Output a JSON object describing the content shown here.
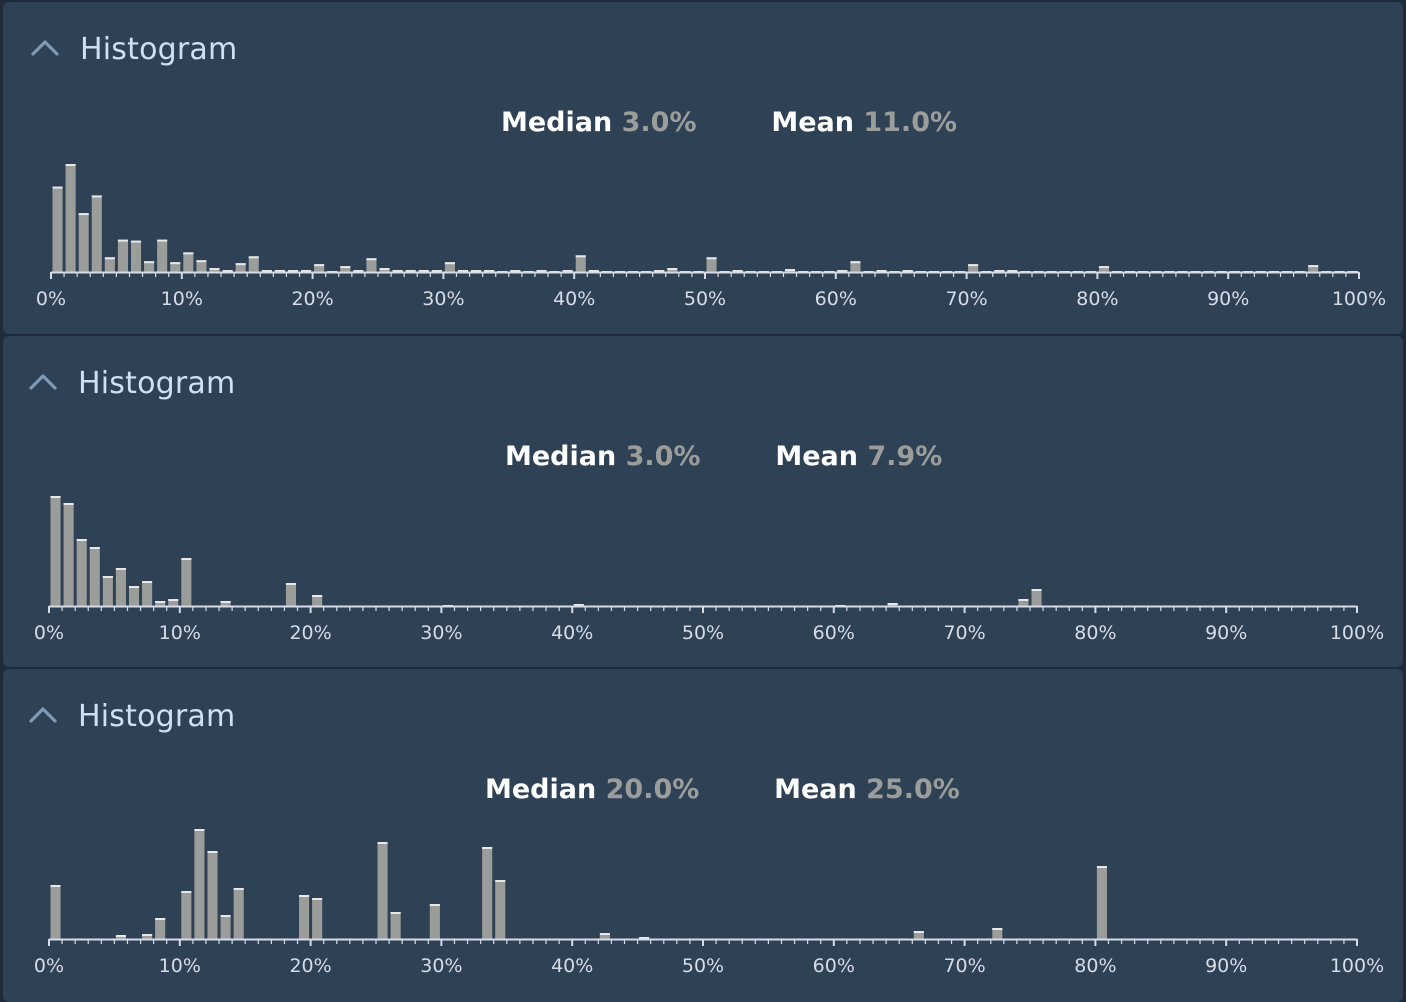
{
  "colors": {
    "background": "#2e4155",
    "bar": "#9b9d9b",
    "bar_top": "#e8e8e8",
    "axis": "#d6dce6",
    "title": "#cfe0f5",
    "stat_value": "#9b9d9b"
  },
  "panels": [
    {
      "title": "Histogram",
      "collapse_icon": "chevron-up-icon",
      "median_label": "Median",
      "median_value": "3.0%",
      "mean_label": "Mean",
      "mean_value": "11.0%"
    },
    {
      "title": "Histogram",
      "collapse_icon": "chevron-up-icon",
      "median_label": "Median",
      "median_value": "3.0%",
      "mean_label": "Mean",
      "mean_value": "7.9%"
    },
    {
      "title": "Histogram",
      "collapse_icon": "chevron-up-icon",
      "median_label": "Median",
      "median_value": "20.0%",
      "mean_label": "Mean",
      "mean_value": "25.0%"
    }
  ],
  "chart_data": [
    {
      "type": "bar",
      "xlim": [
        0,
        100
      ],
      "ylim": [
        0,
        110
      ],
      "bin_width": 1,
      "xticks": [
        "0%",
        "10%",
        "20%",
        "30%",
        "40%",
        "50%",
        "60%",
        "70%",
        "80%",
        "90%",
        "100%"
      ],
      "bins": [
        0,
        1,
        2,
        3,
        4,
        5,
        6,
        7,
        8,
        9,
        10,
        11,
        12,
        13,
        14,
        15,
        16,
        17,
        18,
        19,
        20,
        21,
        22,
        23,
        24,
        25,
        26,
        27,
        28,
        29,
        30,
        31,
        32,
        33,
        34,
        35,
        36,
        37,
        38,
        39,
        40,
        41,
        42,
        43,
        44,
        45,
        46,
        47,
        48,
        49,
        50,
        51,
        52,
        53,
        54,
        55,
        56,
        57,
        58,
        59,
        60,
        61,
        62,
        63,
        64,
        65,
        66,
        67,
        68,
        69,
        70,
        71,
        72,
        73,
        74,
        75,
        76,
        77,
        78,
        79,
        80,
        81,
        82,
        83,
        84,
        85,
        86,
        87,
        88,
        89,
        90,
        91,
        92,
        93,
        94,
        95,
        96,
        97,
        98,
        99
      ],
      "counts": [
        87,
        110,
        60,
        78,
        15,
        33,
        32,
        11,
        33,
        10,
        20,
        12,
        4,
        2,
        9,
        16,
        2,
        2,
        2,
        2,
        8,
        1,
        6,
        2,
        14,
        4,
        2,
        2,
        2,
        2,
        10,
        2,
        2,
        2,
        1,
        2,
        1,
        2,
        1,
        2,
        17,
        2,
        1,
        1,
        1,
        1,
        2,
        4,
        1,
        1,
        15,
        1,
        2,
        1,
        1,
        1,
        3,
        1,
        1,
        1,
        2,
        11,
        1,
        2,
        1,
        2,
        1,
        1,
        1,
        1,
        8,
        1,
        2,
        2,
        1,
        1,
        1,
        1,
        1,
        1,
        6,
        1,
        1,
        1,
        1,
        1,
        1,
        1,
        1,
        1,
        1,
        1,
        1,
        1,
        1,
        1,
        7,
        1,
        1,
        1
      ]
    },
    {
      "type": "bar",
      "xlim": [
        0,
        100
      ],
      "ylim": [
        0,
        110
      ],
      "bin_width": 1,
      "xticks": [
        "0%",
        "10%",
        "20%",
        "30%",
        "40%",
        "50%",
        "60%",
        "70%",
        "80%",
        "90%",
        "100%"
      ],
      "bins": [
        0,
        1,
        2,
        3,
        4,
        5,
        6,
        7,
        8,
        9,
        10,
        11,
        12,
        13,
        14,
        15,
        16,
        17,
        18,
        19,
        20,
        21,
        22,
        23,
        24,
        25,
        26,
        27,
        28,
        29,
        30,
        31,
        32,
        33,
        34,
        35,
        36,
        37,
        38,
        39,
        40,
        41,
        42,
        43,
        44,
        45,
        46,
        47,
        48,
        49,
        50,
        51,
        52,
        53,
        54,
        55,
        56,
        57,
        58,
        59,
        60,
        61,
        62,
        63,
        64,
        65,
        66,
        67,
        68,
        69,
        70,
        71,
        72,
        73,
        74,
        75,
        76,
        77,
        78,
        79,
        80,
        81,
        82,
        83,
        84,
        85,
        86,
        87,
        88,
        89,
        90,
        91,
        92,
        93,
        94,
        95,
        96,
        97,
        98,
        99
      ],
      "counts": [
        110,
        103,
        67,
        59,
        30,
        38,
        20,
        25,
        5,
        7,
        48,
        0,
        0,
        5,
        0,
        0,
        0,
        0,
        23,
        0,
        11,
        0,
        0,
        0,
        0,
        0,
        0,
        0,
        0,
        0,
        1,
        0,
        0,
        0,
        0,
        0,
        0,
        0,
        0,
        0,
        2,
        0,
        0,
        0,
        0,
        0,
        0,
        0,
        0,
        0,
        0,
        0,
        0,
        0,
        0,
        0,
        0,
        0,
        0,
        0,
        1,
        0,
        0,
        0,
        3,
        0,
        0,
        0,
        0,
        0,
        0,
        0,
        0,
        0,
        7,
        17,
        0,
        0,
        0,
        0,
        0,
        0,
        0,
        0,
        0,
        0,
        0,
        0,
        0,
        0,
        0,
        0,
        0,
        0,
        0,
        0,
        0,
        0,
        0,
        0
      ]
    },
    {
      "type": "bar",
      "xlim": [
        0,
        100
      ],
      "ylim": [
        0,
        110
      ],
      "bin_width": 1,
      "xticks": [
        "0%",
        "10%",
        "20%",
        "30%",
        "40%",
        "50%",
        "60%",
        "70%",
        "80%",
        "90%",
        "100%"
      ],
      "bins": [
        0,
        1,
        2,
        3,
        4,
        5,
        6,
        7,
        8,
        9,
        10,
        11,
        12,
        13,
        14,
        15,
        16,
        17,
        18,
        19,
        20,
        21,
        22,
        23,
        24,
        25,
        26,
        27,
        28,
        29,
        30,
        31,
        32,
        33,
        34,
        35,
        36,
        37,
        38,
        39,
        40,
        41,
        42,
        43,
        44,
        45,
        46,
        47,
        48,
        49,
        50,
        51,
        52,
        53,
        54,
        55,
        56,
        57,
        58,
        59,
        60,
        61,
        62,
        63,
        64,
        65,
        66,
        67,
        68,
        69,
        70,
        71,
        72,
        73,
        74,
        75,
        76,
        77,
        78,
        79,
        80,
        81,
        82,
        83,
        84,
        85,
        86,
        87,
        88,
        89,
        90,
        91,
        92,
        93,
        94,
        95,
        96,
        97,
        98,
        99
      ],
      "counts": [
        54,
        0,
        0,
        0,
        0,
        4,
        0,
        5,
        21,
        0,
        48,
        110,
        88,
        24,
        51,
        0,
        0,
        0,
        0,
        44,
        41,
        0,
        0,
        0,
        0,
        97,
        27,
        0,
        0,
        35,
        0,
        0,
        0,
        92,
        59,
        0,
        0,
        0,
        0,
        0,
        0,
        0,
        6,
        0,
        0,
        2,
        0,
        0,
        0,
        0,
        0,
        0,
        0,
        0,
        0,
        0,
        0,
        0,
        0,
        0,
        0,
        0,
        0,
        0,
        0,
        0,
        8,
        0,
        0,
        0,
        0,
        0,
        11,
        0,
        0,
        0,
        0,
        0,
        0,
        0,
        73,
        0,
        0,
        0,
        0,
        0,
        0,
        0,
        0,
        0,
        0,
        0,
        0,
        0,
        0,
        0,
        0,
        0,
        0,
        0
      ]
    }
  ]
}
